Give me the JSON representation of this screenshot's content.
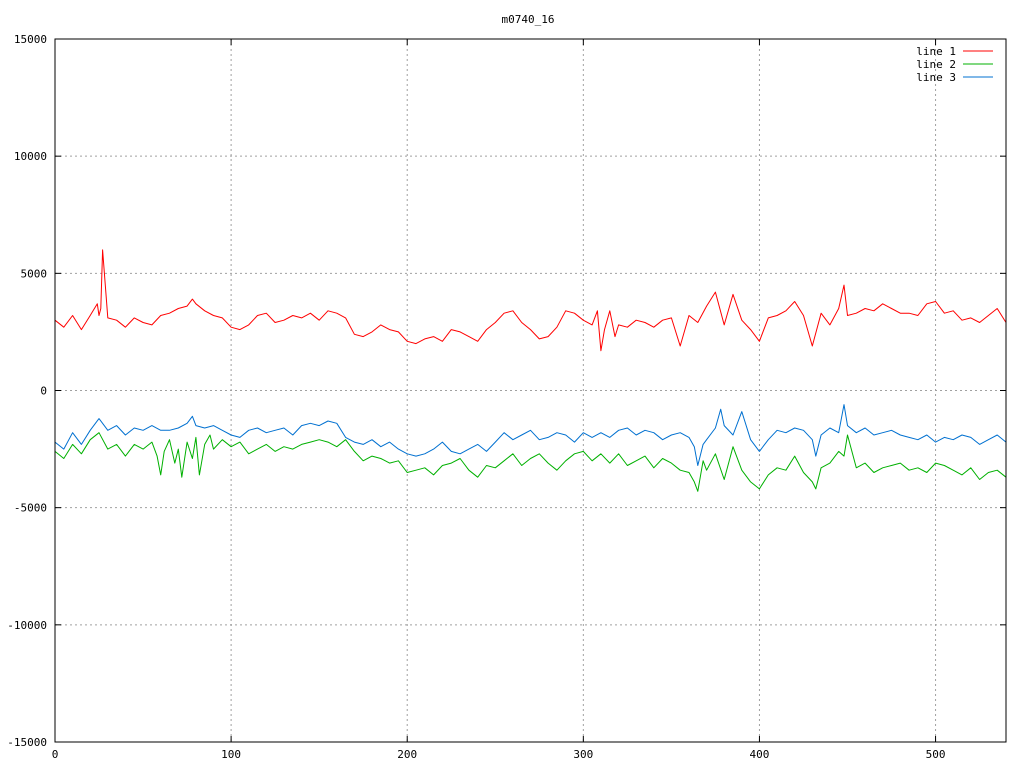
{
  "chart_data": {
    "type": "line",
    "title": "m0740_16",
    "xlabel": "",
    "ylabel": "",
    "xlim": [
      0,
      540
    ],
    "ylim": [
      -15000,
      15000
    ],
    "x_ticks": [
      0,
      100,
      200,
      300,
      400,
      500
    ],
    "y_ticks": [
      -15000,
      -10000,
      -5000,
      0,
      5000,
      10000,
      15000
    ],
    "grid": true,
    "legend_position": "top-right",
    "series": [
      {
        "name": "line 1",
        "color": "#ff0000",
        "x": [
          0,
          5,
          10,
          15,
          20,
          24,
          25,
          26,
          27,
          30,
          35,
          40,
          45,
          50,
          55,
          60,
          65,
          70,
          75,
          78,
          80,
          85,
          90,
          95,
          100,
          105,
          110,
          115,
          120,
          125,
          130,
          135,
          140,
          145,
          150,
          155,
          160,
          165,
          170,
          175,
          180,
          185,
          190,
          195,
          200,
          205,
          210,
          215,
          220,
          225,
          230,
          235,
          240,
          245,
          250,
          255,
          260,
          265,
          270,
          275,
          280,
          285,
          290,
          295,
          300,
          305,
          308,
          310,
          312,
          315,
          318,
          320,
          325,
          330,
          335,
          340,
          345,
          350,
          355,
          360,
          365,
          370,
          375,
          380,
          385,
          390,
          395,
          400,
          405,
          410,
          415,
          420,
          425,
          430,
          435,
          440,
          445,
          448,
          450,
          455,
          460,
          465,
          470,
          475,
          480,
          485,
          490,
          495,
          500,
          505,
          510,
          515,
          520,
          525,
          530,
          535,
          540
        ],
        "y": [
          3000,
          2700,
          3200,
          2600,
          3200,
          3700,
          3200,
          3500,
          6000,
          3100,
          3000,
          2700,
          3100,
          2900,
          2800,
          3200,
          3300,
          3500,
          3600,
          3900,
          3700,
          3400,
          3200,
          3100,
          2700,
          2600,
          2800,
          3200,
          3300,
          2900,
          3000,
          3200,
          3100,
          3300,
          3000,
          3400,
          3300,
          3100,
          2400,
          2300,
          2500,
          2800,
          2600,
          2500,
          2100,
          2000,
          2200,
          2300,
          2100,
          2600,
          2500,
          2300,
          2100,
          2600,
          2900,
          3300,
          3400,
          2900,
          2600,
          2200,
          2300,
          2700,
          3400,
          3300,
          3000,
          2800,
          3400,
          1700,
          2600,
          3400,
          2300,
          2800,
          2700,
          3000,
          2900,
          2700,
          3000,
          3100,
          1900,
          3200,
          2900,
          3600,
          4200,
          2800,
          4100,
          3000,
          2600,
          2100,
          3100,
          3200,
          3400,
          3800,
          3200,
          1900,
          3300,
          2800,
          3500,
          4500,
          3200,
          3300,
          3500,
          3400,
          3700,
          3500,
          3300,
          3300,
          3200,
          3700,
          3800,
          3300,
          3400,
          3000,
          3100,
          2900,
          3200,
          3500,
          2900
        ]
      },
      {
        "name": "line 2",
        "color": "#00b000",
        "x": [
          0,
          5,
          10,
          15,
          20,
          25,
          30,
          35,
          40,
          45,
          50,
          55,
          58,
          60,
          62,
          65,
          68,
          70,
          72,
          75,
          78,
          80,
          82,
          85,
          88,
          90,
          95,
          100,
          105,
          110,
          115,
          120,
          125,
          130,
          135,
          140,
          145,
          150,
          155,
          160,
          165,
          170,
          175,
          180,
          185,
          190,
          195,
          200,
          205,
          210,
          215,
          220,
          225,
          230,
          235,
          240,
          245,
          250,
          255,
          260,
          265,
          270,
          275,
          280,
          285,
          290,
          295,
          300,
          305,
          310,
          315,
          320,
          325,
          330,
          335,
          340,
          345,
          350,
          355,
          360,
          363,
          365,
          368,
          370,
          375,
          380,
          385,
          390,
          395,
          400,
          405,
          410,
          415,
          420,
          425,
          430,
          432,
          435,
          440,
          445,
          448,
          450,
          455,
          460,
          465,
          470,
          475,
          480,
          485,
          490,
          495,
          500,
          505,
          510,
          515,
          520,
          525,
          530,
          535,
          540
        ],
        "y": [
          -2600,
          -2900,
          -2300,
          -2700,
          -2100,
          -1800,
          -2500,
          -2300,
          -2800,
          -2300,
          -2500,
          -2200,
          -2800,
          -3600,
          -2600,
          -2100,
          -3100,
          -2500,
          -3700,
          -2200,
          -2900,
          -2000,
          -3600,
          -2300,
          -1900,
          -2500,
          -2100,
          -2400,
          -2200,
          -2700,
          -2500,
          -2300,
          -2600,
          -2400,
          -2500,
          -2300,
          -2200,
          -2100,
          -2200,
          -2400,
          -2100,
          -2600,
          -3000,
          -2800,
          -2900,
          -3100,
          -3000,
          -3500,
          -3400,
          -3300,
          -3600,
          -3200,
          -3100,
          -2900,
          -3400,
          -3700,
          -3200,
          -3300,
          -3000,
          -2700,
          -3200,
          -2900,
          -2700,
          -3100,
          -3400,
          -3000,
          -2700,
          -2600,
          -3000,
          -2700,
          -3100,
          -2700,
          -3200,
          -3000,
          -2800,
          -3300,
          -2900,
          -3100,
          -3400,
          -3500,
          -3900,
          -4300,
          -3000,
          -3400,
          -2700,
          -3800,
          -2400,
          -3400,
          -3900,
          -4200,
          -3600,
          -3300,
          -3400,
          -2800,
          -3500,
          -3900,
          -4200,
          -3300,
          -3100,
          -2600,
          -2800,
          -1900,
          -3300,
          -3100,
          -3500,
          -3300,
          -3200,
          -3100,
          -3400,
          -3300,
          -3500,
          -3100,
          -3200,
          -3400,
          -3600,
          -3300,
          -3800,
          -3500,
          -3400,
          -3700
        ]
      },
      {
        "name": "line 3",
        "color": "#0070d0",
        "x": [
          0,
          5,
          10,
          15,
          20,
          25,
          30,
          35,
          40,
          45,
          50,
          55,
          60,
          65,
          70,
          75,
          78,
          80,
          85,
          90,
          95,
          100,
          105,
          110,
          115,
          120,
          125,
          130,
          135,
          140,
          145,
          150,
          155,
          160,
          165,
          170,
          175,
          180,
          185,
          190,
          195,
          200,
          205,
          210,
          215,
          220,
          225,
          230,
          235,
          240,
          245,
          250,
          255,
          260,
          265,
          270,
          275,
          280,
          285,
          290,
          295,
          300,
          305,
          310,
          315,
          320,
          325,
          330,
          335,
          340,
          345,
          350,
          355,
          360,
          363,
          365,
          368,
          370,
          375,
          378,
          380,
          385,
          390,
          395,
          400,
          405,
          410,
          415,
          420,
          425,
          430,
          432,
          435,
          440,
          445,
          448,
          450,
          455,
          460,
          465,
          470,
          475,
          480,
          485,
          490,
          495,
          500,
          505,
          510,
          515,
          520,
          525,
          530,
          535,
          540
        ],
        "y": [
          -2200,
          -2500,
          -1800,
          -2300,
          -1700,
          -1200,
          -1700,
          -1500,
          -1900,
          -1600,
          -1700,
          -1500,
          -1700,
          -1700,
          -1600,
          -1400,
          -1100,
          -1500,
          -1600,
          -1500,
          -1700,
          -1900,
          -2000,
          -1700,
          -1600,
          -1800,
          -1700,
          -1600,
          -1900,
          -1500,
          -1400,
          -1500,
          -1300,
          -1400,
          -2000,
          -2200,
          -2300,
          -2100,
          -2400,
          -2200,
          -2500,
          -2700,
          -2800,
          -2700,
          -2500,
          -2200,
          -2600,
          -2700,
          -2500,
          -2300,
          -2600,
          -2200,
          -1800,
          -2100,
          -1900,
          -1700,
          -2100,
          -2000,
          -1800,
          -1900,
          -2200,
          -1800,
          -2000,
          -1800,
          -2000,
          -1700,
          -1600,
          -1900,
          -1700,
          -1800,
          -2100,
          -1900,
          -1800,
          -2000,
          -2400,
          -3200,
          -2300,
          -2100,
          -1600,
          -800,
          -1500,
          -1900,
          -900,
          -2100,
          -2600,
          -2100,
          -1700,
          -1800,
          -1600,
          -1700,
          -2100,
          -2800,
          -1900,
          -1600,
          -1800,
          -600,
          -1500,
          -1800,
          -1600,
          -1900,
          -1800,
          -1700,
          -1900,
          -2000,
          -2100,
          -1900,
          -2200,
          -2000,
          -2100,
          -1900,
          -2000,
          -2300,
          -2100,
          -1900,
          -2200
        ]
      }
    ]
  }
}
